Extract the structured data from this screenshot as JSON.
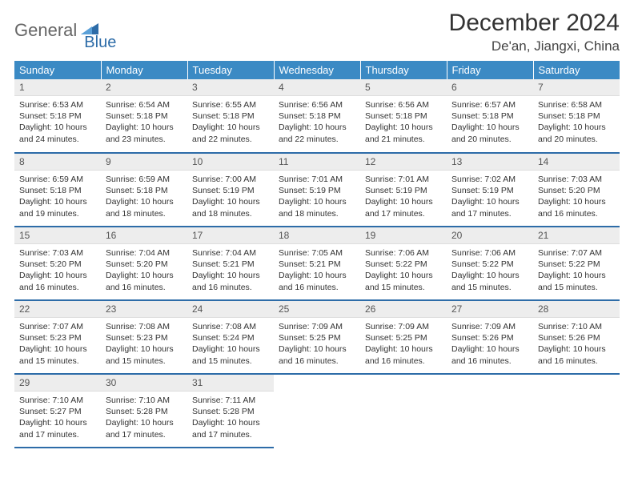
{
  "logo": {
    "part1": "General",
    "part2": "Blue"
  },
  "title": "December 2024",
  "location": "De'an, Jiangxi, China",
  "colors": {
    "header_bg": "#3b8ac4",
    "header_text": "#ffffff",
    "row_divider": "#2d6ca8",
    "daynum_bg": "#ededed",
    "logo_accent": "#2d6ca8",
    "logo_gray": "#666666"
  },
  "weekdays": [
    "Sunday",
    "Monday",
    "Tuesday",
    "Wednesday",
    "Thursday",
    "Friday",
    "Saturday"
  ],
  "days": [
    {
      "n": 1,
      "sunrise": "6:53 AM",
      "sunset": "5:18 PM",
      "daylight": "10 hours and 24 minutes."
    },
    {
      "n": 2,
      "sunrise": "6:54 AM",
      "sunset": "5:18 PM",
      "daylight": "10 hours and 23 minutes."
    },
    {
      "n": 3,
      "sunrise": "6:55 AM",
      "sunset": "5:18 PM",
      "daylight": "10 hours and 22 minutes."
    },
    {
      "n": 4,
      "sunrise": "6:56 AM",
      "sunset": "5:18 PM",
      "daylight": "10 hours and 22 minutes."
    },
    {
      "n": 5,
      "sunrise": "6:56 AM",
      "sunset": "5:18 PM",
      "daylight": "10 hours and 21 minutes."
    },
    {
      "n": 6,
      "sunrise": "6:57 AM",
      "sunset": "5:18 PM",
      "daylight": "10 hours and 20 minutes."
    },
    {
      "n": 7,
      "sunrise": "6:58 AM",
      "sunset": "5:18 PM",
      "daylight": "10 hours and 20 minutes."
    },
    {
      "n": 8,
      "sunrise": "6:59 AM",
      "sunset": "5:18 PM",
      "daylight": "10 hours and 19 minutes."
    },
    {
      "n": 9,
      "sunrise": "6:59 AM",
      "sunset": "5:18 PM",
      "daylight": "10 hours and 18 minutes."
    },
    {
      "n": 10,
      "sunrise": "7:00 AM",
      "sunset": "5:19 PM",
      "daylight": "10 hours and 18 minutes."
    },
    {
      "n": 11,
      "sunrise": "7:01 AM",
      "sunset": "5:19 PM",
      "daylight": "10 hours and 18 minutes."
    },
    {
      "n": 12,
      "sunrise": "7:01 AM",
      "sunset": "5:19 PM",
      "daylight": "10 hours and 17 minutes."
    },
    {
      "n": 13,
      "sunrise": "7:02 AM",
      "sunset": "5:19 PM",
      "daylight": "10 hours and 17 minutes."
    },
    {
      "n": 14,
      "sunrise": "7:03 AM",
      "sunset": "5:20 PM",
      "daylight": "10 hours and 16 minutes."
    },
    {
      "n": 15,
      "sunrise": "7:03 AM",
      "sunset": "5:20 PM",
      "daylight": "10 hours and 16 minutes."
    },
    {
      "n": 16,
      "sunrise": "7:04 AM",
      "sunset": "5:20 PM",
      "daylight": "10 hours and 16 minutes."
    },
    {
      "n": 17,
      "sunrise": "7:04 AM",
      "sunset": "5:21 PM",
      "daylight": "10 hours and 16 minutes."
    },
    {
      "n": 18,
      "sunrise": "7:05 AM",
      "sunset": "5:21 PM",
      "daylight": "10 hours and 16 minutes."
    },
    {
      "n": 19,
      "sunrise": "7:06 AM",
      "sunset": "5:22 PM",
      "daylight": "10 hours and 15 minutes."
    },
    {
      "n": 20,
      "sunrise": "7:06 AM",
      "sunset": "5:22 PM",
      "daylight": "10 hours and 15 minutes."
    },
    {
      "n": 21,
      "sunrise": "7:07 AM",
      "sunset": "5:22 PM",
      "daylight": "10 hours and 15 minutes."
    },
    {
      "n": 22,
      "sunrise": "7:07 AM",
      "sunset": "5:23 PM",
      "daylight": "10 hours and 15 minutes."
    },
    {
      "n": 23,
      "sunrise": "7:08 AM",
      "sunset": "5:23 PM",
      "daylight": "10 hours and 15 minutes."
    },
    {
      "n": 24,
      "sunrise": "7:08 AM",
      "sunset": "5:24 PM",
      "daylight": "10 hours and 15 minutes."
    },
    {
      "n": 25,
      "sunrise": "7:09 AM",
      "sunset": "5:25 PM",
      "daylight": "10 hours and 16 minutes."
    },
    {
      "n": 26,
      "sunrise": "7:09 AM",
      "sunset": "5:25 PM",
      "daylight": "10 hours and 16 minutes."
    },
    {
      "n": 27,
      "sunrise": "7:09 AM",
      "sunset": "5:26 PM",
      "daylight": "10 hours and 16 minutes."
    },
    {
      "n": 28,
      "sunrise": "7:10 AM",
      "sunset": "5:26 PM",
      "daylight": "10 hours and 16 minutes."
    },
    {
      "n": 29,
      "sunrise": "7:10 AM",
      "sunset": "5:27 PM",
      "daylight": "10 hours and 17 minutes."
    },
    {
      "n": 30,
      "sunrise": "7:10 AM",
      "sunset": "5:28 PM",
      "daylight": "10 hours and 17 minutes."
    },
    {
      "n": 31,
      "sunrise": "7:11 AM",
      "sunset": "5:28 PM",
      "daylight": "10 hours and 17 minutes."
    }
  ],
  "labels": {
    "sunrise": "Sunrise:",
    "sunset": "Sunset:",
    "daylight": "Daylight:"
  },
  "layout": {
    "first_weekday_index": 0,
    "weeks": 5
  }
}
